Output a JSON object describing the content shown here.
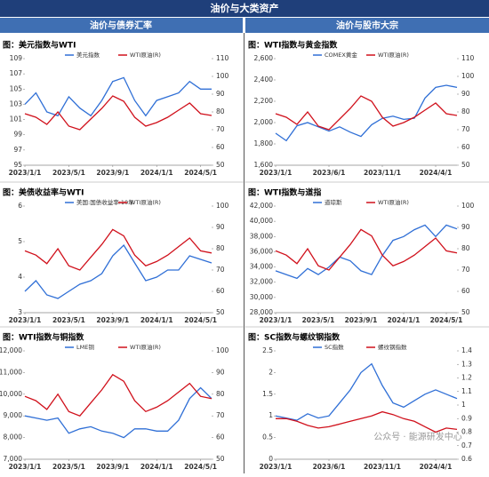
{
  "header": {
    "title": "油价与大类资产",
    "left": "油价与债券汇率",
    "right": "油价与股市大宗"
  },
  "watermark": "公众号 · 能源研发中心",
  "chart_data": [
    {
      "type": "line",
      "title": "图：美元指数与WTI",
      "x": [
        "2023/1/1",
        "2023/2/1",
        "2023/3/1",
        "2023/4/1",
        "2023/5/1",
        "2023/6/1",
        "2023/7/1",
        "2023/8/1",
        "2023/9/1",
        "2023/10/1",
        "2023/11/1",
        "2023/12/1",
        "2024/1/1",
        "2024/2/1",
        "2024/3/1",
        "2024/4/1",
        "2024/5/1",
        "2024/6/1"
      ],
      "xticks": [
        "2023/1/1",
        "2023/5/1",
        "2023/9/1",
        "2024/1/1",
        "2024/5/1"
      ],
      "ylim": [
        95,
        109
      ],
      "yticks": [
        95,
        97,
        99,
        101,
        103,
        105,
        107,
        109
      ],
      "y2lim": [
        50,
        110
      ],
      "y2ticks": [
        50,
        60,
        70,
        80,
        90,
        100,
        110
      ],
      "series": [
        {
          "name": "美元指数",
          "color": "#2f6fd6",
          "values": [
            103,
            104.5,
            102,
            101.5,
            104,
            102.5,
            101.5,
            103.5,
            106,
            106.5,
            103.5,
            101.5,
            103.5,
            104,
            104.5,
            106,
            105,
            105
          ]
        },
        {
          "name": "WTI原油(R)",
          "color": "#d0101b",
          "axis": "y2",
          "values": [
            79,
            77,
            73,
            80,
            72,
            70,
            76,
            82,
            89,
            86,
            77,
            72,
            74,
            77,
            81,
            85,
            79,
            78
          ]
        }
      ]
    },
    {
      "type": "line",
      "title": "图：WTI指数与黄金指数",
      "x": [
        "2023/1/1",
        "2023/2/1",
        "2023/3/1",
        "2023/4/1",
        "2023/5/1",
        "2023/6/1",
        "2023/7/1",
        "2023/8/1",
        "2023/9/1",
        "2023/10/1",
        "2023/11/1",
        "2023/12/1",
        "2024/1/1",
        "2024/2/1",
        "2024/3/1",
        "2024/4/1",
        "2024/5/1",
        "2024/6/1"
      ],
      "xticks": [
        "2023/1/1",
        "2023/6/1",
        "2023/11/1",
        "2024/4/1"
      ],
      "ylim": [
        1600,
        2600
      ],
      "yticks": [
        {
          "value": 1600,
          "label": "1,600"
        },
        {
          "value": 1800,
          "label": "1,800"
        },
        {
          "value": 2000,
          "label": "2,000"
        },
        {
          "value": 2200,
          "label": "2,200"
        },
        {
          "value": 2400,
          "label": "2,400"
        },
        {
          "value": 2600,
          "label": "2,600"
        }
      ],
      "y2lim": [
        50,
        110
      ],
      "y2ticks": [
        50,
        60,
        70,
        80,
        90,
        100,
        110
      ],
      "series": [
        {
          "name": "COMEX黄金",
          "color": "#2f6fd6",
          "values": [
            1900,
            1830,
            1970,
            2000,
            1960,
            1920,
            1960,
            1910,
            1870,
            1980,
            2040,
            2060,
            2030,
            2040,
            2230,
            2330,
            2350,
            2330
          ]
        },
        {
          "name": "WTI原油(R)",
          "color": "#d0101b",
          "axis": "y2",
          "values": [
            79,
            77,
            73,
            80,
            72,
            70,
            76,
            82,
            89,
            86,
            77,
            72,
            74,
            77,
            81,
            85,
            79,
            78
          ]
        }
      ]
    },
    {
      "type": "line",
      "title": "图：美债收益率与WTI",
      "x": [
        "2023/1/1",
        "2023/2/1",
        "2023/3/1",
        "2023/4/1",
        "2023/5/1",
        "2023/6/1",
        "2023/7/1",
        "2023/8/1",
        "2023/9/1",
        "2023/10/1",
        "2023/11/1",
        "2023/12/1",
        "2024/1/1",
        "2024/2/1",
        "2024/3/1",
        "2024/4/1",
        "2024/5/1",
        "2024/6/1"
      ],
      "xticks": [
        "2023/1/1",
        "2023/5/1",
        "2023/9/1",
        "2024/1/1",
        "2024/5/1"
      ],
      "ylim": [
        3,
        6
      ],
      "yticks": [
        3,
        4,
        5,
        6
      ],
      "y2lim": [
        50,
        100
      ],
      "y2ticks": [
        50,
        60,
        70,
        80,
        90,
        100
      ],
      "series": [
        {
          "name": "美国:国债收益率:10年",
          "color": "#2f6fd6",
          "values": [
            3.6,
            3.9,
            3.5,
            3.4,
            3.6,
            3.8,
            3.9,
            4.1,
            4.6,
            4.9,
            4.4,
            3.9,
            4.0,
            4.2,
            4.2,
            4.6,
            4.5,
            4.4
          ]
        },
        {
          "name": "WTI原油(R)",
          "color": "#d0101b",
          "axis": "y2",
          "values": [
            79,
            77,
            73,
            80,
            72,
            70,
            76,
            82,
            89,
            86,
            77,
            72,
            74,
            77,
            81,
            85,
            79,
            78
          ]
        }
      ]
    },
    {
      "type": "line",
      "title": "图：WTI指数与道指",
      "x": [
        "2023/1/1",
        "2023/2/1",
        "2023/3/1",
        "2023/4/1",
        "2023/5/1",
        "2023/6/1",
        "2023/7/1",
        "2023/8/1",
        "2023/9/1",
        "2023/10/1",
        "2023/11/1",
        "2023/12/1",
        "2024/1/1",
        "2024/2/1",
        "2024/3/1",
        "2024/4/1",
        "2024/5/1",
        "2024/6/1"
      ],
      "xticks": [
        "2023/1/1",
        "2023/5/1",
        "2023/9/1",
        "2024/1/1",
        "2024/5/1"
      ],
      "ylim": [
        28000,
        42000
      ],
      "yticks": [
        {
          "value": 28000,
          "label": "28,000"
        },
        {
          "value": 30000,
          "label": "30,000"
        },
        {
          "value": 32000,
          "label": "32,000"
        },
        {
          "value": 34000,
          "label": "34,000"
        },
        {
          "value": 36000,
          "label": "36,000"
        },
        {
          "value": 38000,
          "label": "38,000"
        },
        {
          "value": 40000,
          "label": "40,000"
        },
        {
          "value": 42000,
          "label": "42,000"
        }
      ],
      "y2lim": [
        50,
        100
      ],
      "y2ticks": [
        50,
        60,
        70,
        80,
        90,
        100
      ],
      "series": [
        {
          "name": "道琼斯",
          "color": "#2f6fd6",
          "values": [
            33500,
            33000,
            32500,
            33800,
            33000,
            34000,
            35300,
            34800,
            33500,
            33000,
            35500,
            37500,
            38000,
            38900,
            39500,
            38000,
            39500,
            39000
          ]
        },
        {
          "name": "WTI原油(R)",
          "color": "#d0101b",
          "axis": "y2",
          "values": [
            79,
            77,
            73,
            80,
            72,
            70,
            76,
            82,
            89,
            86,
            77,
            72,
            74,
            77,
            81,
            85,
            79,
            78
          ]
        }
      ]
    },
    {
      "type": "line",
      "title": "图：WTI指数与铜指数",
      "x": [
        "2023/1/1",
        "2023/2/1",
        "2023/3/1",
        "2023/4/1",
        "2023/5/1",
        "2023/6/1",
        "2023/7/1",
        "2023/8/1",
        "2023/9/1",
        "2023/10/1",
        "2023/11/1",
        "2023/12/1",
        "2024/1/1",
        "2024/2/1",
        "2024/3/1",
        "2024/4/1",
        "2024/5/1",
        "2024/6/1"
      ],
      "xticks": [
        "2023/1/1",
        "2023/5/1",
        "2023/9/1",
        "2024/1/1",
        "2024/5/1"
      ],
      "ylim": [
        7000,
        12000
      ],
      "yticks": [
        {
          "value": 7000,
          "label": "7,000"
        },
        {
          "value": 8000,
          "label": "8,000"
        },
        {
          "value": 9000,
          "label": "9,000"
        },
        {
          "value": 10000,
          "label": "10,000"
        },
        {
          "value": 11000,
          "label": "11,000"
        },
        {
          "value": 12000,
          "label": "12,000"
        }
      ],
      "y2lim": [
        50,
        100
      ],
      "y2ticks": [
        50,
        60,
        70,
        80,
        90,
        100
      ],
      "series": [
        {
          "name": "LME铜",
          "color": "#2f6fd6",
          "values": [
            9000,
            8900,
            8800,
            8900,
            8200,
            8400,
            8500,
            8300,
            8200,
            8000,
            8400,
            8400,
            8300,
            8300,
            8800,
            9800,
            10300,
            9800
          ]
        },
        {
          "name": "WTI原油(R)",
          "color": "#d0101b",
          "axis": "y2",
          "values": [
            79,
            77,
            73,
            80,
            72,
            70,
            76,
            82,
            89,
            86,
            77,
            72,
            74,
            77,
            81,
            85,
            79,
            78
          ]
        }
      ]
    },
    {
      "type": "line",
      "title": "图：SC指数与螺纹钢指数",
      "x": [
        "2023/1/1",
        "2023/2/1",
        "2023/3/1",
        "2023/4/1",
        "2023/5/1",
        "2023/6/1",
        "2023/7/1",
        "2023/8/1",
        "2023/9/1",
        "2023/10/1",
        "2023/11/1",
        "2023/12/1",
        "2024/1/1",
        "2024/2/1",
        "2024/3/1",
        "2024/4/1",
        "2024/5/1",
        "2024/6/1"
      ],
      "xticks": [
        "2023/1/1",
        "2023/6/1",
        "2023/11/1",
        "2024/4/1"
      ],
      "ylim": [
        0,
        2.5
      ],
      "yticks": [
        0,
        0.5,
        1,
        1.5,
        2,
        2.5
      ],
      "y2lim": [
        0.6,
        1.4
      ],
      "y2ticks": [
        0.6,
        0.7,
        0.8,
        0.9,
        1,
        1.1,
        1.2,
        1.3,
        1.4
      ],
      "series": [
        {
          "name": "SC指数",
          "color": "#2f6fd6",
          "values": [
            1.0,
            0.95,
            0.9,
            1.05,
            0.95,
            1.0,
            1.3,
            1.6,
            2.0,
            2.2,
            1.7,
            1.3,
            1.2,
            1.35,
            1.5,
            1.6,
            1.5,
            1.4
          ]
        },
        {
          "name": "螺纹钢指数",
          "color": "#d0101b",
          "axis": "y2",
          "values": [
            0.9,
            0.9,
            0.88,
            0.85,
            0.83,
            0.84,
            0.86,
            0.88,
            0.9,
            0.92,
            0.95,
            0.93,
            0.9,
            0.88,
            0.84,
            0.8,
            0.83,
            0.82
          ]
        }
      ]
    }
  ]
}
